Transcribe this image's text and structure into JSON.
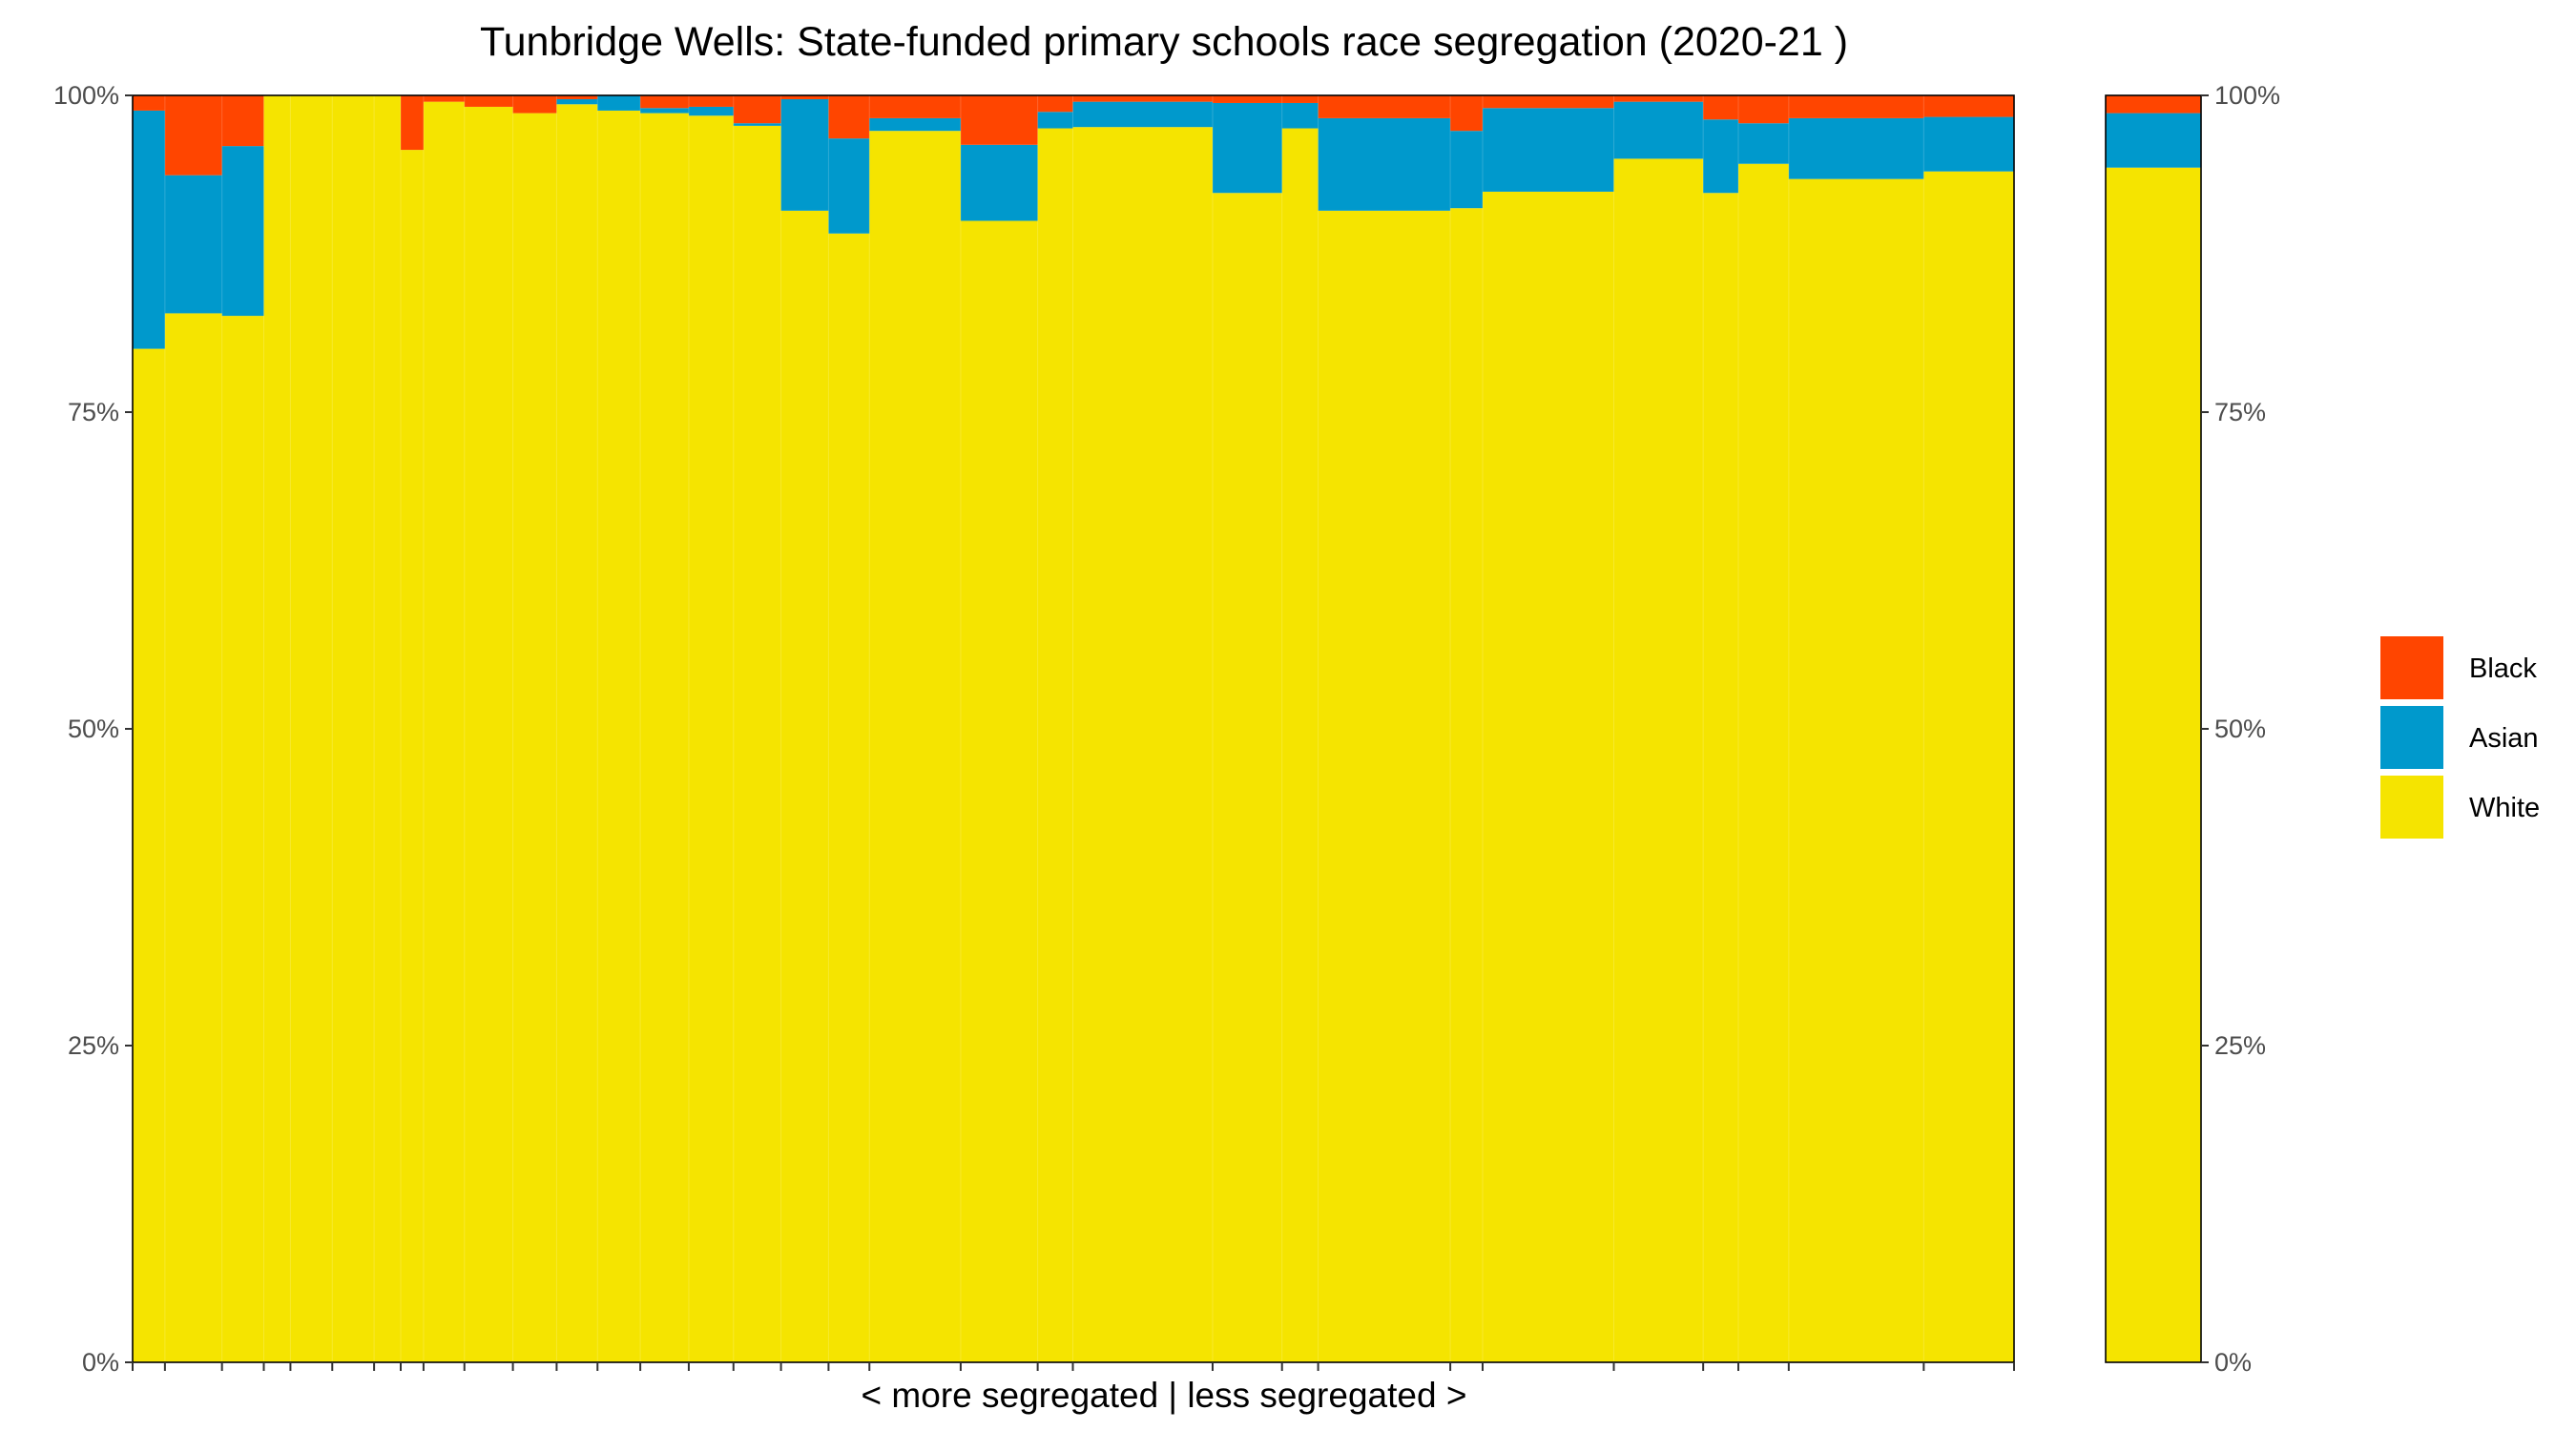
{
  "chart_data": {
    "type": "bar",
    "stacked": true,
    "variable_width": true,
    "title": "Tunbridge Wells: State-funded primary schools race segregation (2020-21 )",
    "xlabel": "< more segregated | less segregated >",
    "ylabel": "",
    "ylim": [
      0,
      100
    ],
    "y_ticks": [
      "0%",
      "25%",
      "50%",
      "75%",
      "100%"
    ],
    "y_tick_values": [
      0,
      25,
      50,
      75,
      100
    ],
    "legend_position": "right",
    "colors": {
      "Black": "#FF4500",
      "Asian": "#0099CC",
      "White": "#F5E400"
    },
    "series_order": [
      "White",
      "Asian",
      "Black"
    ],
    "legend_order": [
      "Black",
      "Asian",
      "White"
    ],
    "schools": [
      {
        "width": 34,
        "White": 80.0,
        "Asian": 18.8,
        "Black": 1.2
      },
      {
        "width": 60,
        "White": 82.8,
        "Asian": 10.9,
        "Black": 6.3
      },
      {
        "width": 44,
        "White": 82.6,
        "Asian": 13.4,
        "Black": 4.0
      },
      {
        "width": 28,
        "White": 100.0,
        "Asian": 0.0,
        "Black": 0.0
      },
      {
        "width": 44,
        "White": 100.0,
        "Asian": 0.0,
        "Black": 0.0
      },
      {
        "width": 44,
        "White": 100.0,
        "Asian": 0.0,
        "Black": 0.0
      },
      {
        "width": 28,
        "White": 100.0,
        "Asian": 0.0,
        "Black": 0.0
      },
      {
        "width": 24,
        "White": 95.7,
        "Asian": 0.0,
        "Black": 4.3
      },
      {
        "width": 43,
        "White": 99.5,
        "Asian": 0.0,
        "Black": 0.5
      },
      {
        "width": 51,
        "White": 99.1,
        "Asian": 0.0,
        "Black": 0.9
      },
      {
        "width": 46,
        "White": 98.6,
        "Asian": 0.0,
        "Black": 1.4
      },
      {
        "width": 43,
        "White": 99.3,
        "Asian": 0.4,
        "Black": 0.3
      },
      {
        "width": 45,
        "White": 98.8,
        "Asian": 1.2,
        "Black": 0.0
      },
      {
        "width": 51,
        "White": 98.6,
        "Asian": 0.4,
        "Black": 1.0
      },
      {
        "width": 47,
        "White": 98.4,
        "Asian": 0.7,
        "Black": 0.9
      },
      {
        "width": 50,
        "White": 97.6,
        "Asian": 0.2,
        "Black": 2.2
      },
      {
        "width": 50,
        "White": 90.9,
        "Asian": 8.8,
        "Black": 0.3
      },
      {
        "width": 43,
        "White": 89.1,
        "Asian": 7.5,
        "Black": 3.4
      },
      {
        "width": 96,
        "White": 97.2,
        "Asian": 1.0,
        "Black": 1.8
      },
      {
        "width": 81,
        "White": 90.1,
        "Asian": 6.0,
        "Black": 3.9
      },
      {
        "width": 37,
        "White": 97.4,
        "Asian": 1.3,
        "Black": 1.3
      },
      {
        "width": 147,
        "White": 97.5,
        "Asian": 2.0,
        "Black": 0.5
      },
      {
        "width": 73,
        "White": 92.3,
        "Asian": 7.1,
        "Black": 0.6
      },
      {
        "width": 38,
        "White": 97.4,
        "Asian": 2.0,
        "Black": 0.6
      },
      {
        "width": 139,
        "White": 90.9,
        "Asian": 7.3,
        "Black": 1.8
      },
      {
        "width": 34,
        "White": 91.1,
        "Asian": 6.1,
        "Black": 2.8
      },
      {
        "width": 138,
        "White": 92.4,
        "Asian": 6.6,
        "Black": 1.0
      },
      {
        "width": 94,
        "White": 95.0,
        "Asian": 4.5,
        "Black": 0.5
      },
      {
        "width": 37,
        "White": 92.3,
        "Asian": 5.8,
        "Black": 1.9
      },
      {
        "width": 53,
        "White": 94.6,
        "Asian": 3.2,
        "Black": 2.2
      },
      {
        "width": 142,
        "White": 93.4,
        "Asian": 4.8,
        "Black": 1.8
      },
      {
        "width": 95,
        "White": 94.0,
        "Asian": 4.3,
        "Black": 1.7
      }
    ],
    "total": {
      "White": 94.3,
      "Asian": 4.3,
      "Black": 1.4
    }
  }
}
